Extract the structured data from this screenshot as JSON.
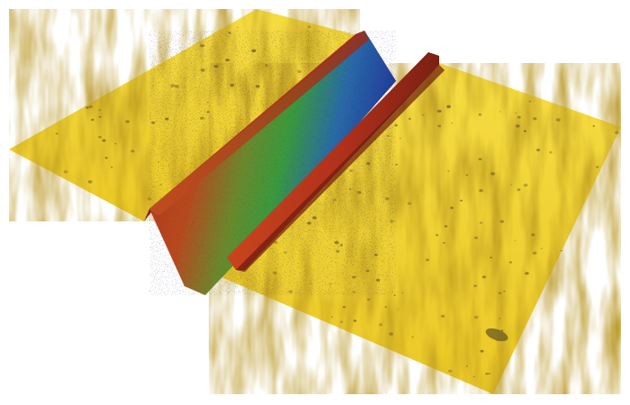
{
  "image": {
    "subject": "3d-surface-topography-render",
    "background_color": "#ffffff",
    "surface_colors": {
      "base_light": "#f2d330",
      "base_mid": "#e2bb1c",
      "base_dark": "#b99520",
      "ridge_red": "#b0301b",
      "ridge_green": "#3a9a3c",
      "ridge_blue": "#22389a",
      "speckle": "#6a5a22"
    }
  }
}
